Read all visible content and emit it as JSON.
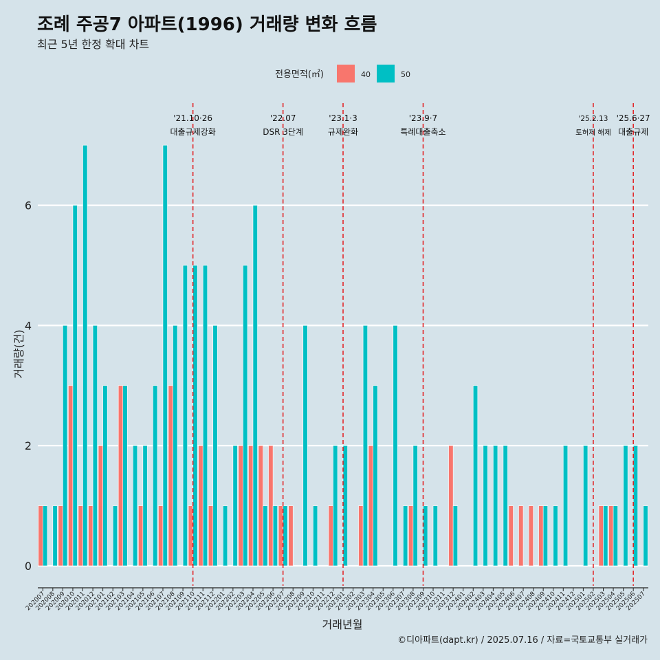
{
  "chart_data": {
    "type": "bar",
    "title": "조례 주공7 아파트(1996) 거래량 변화 흐름",
    "subtitle": "최근 5년 한정 확대 차트",
    "legend": {
      "title": "전용면적(㎡)",
      "entries": [
        {
          "label": "40",
          "color": "#f8766d"
        },
        {
          "label": "50",
          "color": "#00bfc4"
        }
      ]
    },
    "xlabel": "거래년월",
    "ylabel": "거래량(건)",
    "ylim": [
      -0.3,
      7.6
    ],
    "yticks": [
      0,
      2,
      4,
      6
    ],
    "categories": [
      "202007",
      "202008",
      "202009",
      "202010",
      "202011",
      "202012",
      "202101",
      "202102",
      "202103",
      "202104",
      "202105",
      "202106",
      "202107",
      "202108",
      "202109",
      "202110",
      "202111",
      "202112",
      "202201",
      "202202",
      "202203",
      "202204",
      "202205",
      "202206",
      "202207",
      "202208",
      "202209",
      "202210",
      "202211",
      "202212",
      "202301",
      "202302",
      "202303",
      "202304",
      "202305",
      "202306",
      "202307",
      "202308",
      "202309",
      "202310",
      "202311",
      "202312",
      "202401",
      "202402",
      "202403",
      "202404",
      "202405",
      "202406",
      "202407",
      "202408",
      "202409",
      "202410",
      "202411",
      "202412",
      "202501",
      "202502",
      "202503",
      "202504",
      "202505",
      "202506",
      "202507"
    ],
    "series": [
      {
        "name": "40",
        "color": "#f8766d",
        "values": [
          1,
          0,
          1,
          3,
          1,
          1,
          2,
          0,
          3,
          0,
          1,
          0,
          1,
          3,
          0,
          1,
          2,
          1,
          0,
          0,
          2,
          2,
          2,
          2,
          1,
          1,
          0,
          0,
          0,
          1,
          0,
          0,
          1,
          2,
          0,
          0,
          0,
          1,
          0,
          0,
          0,
          2,
          0,
          0,
          0,
          0,
          0,
          1,
          1,
          1,
          1,
          0,
          0,
          0,
          0,
          0,
          1,
          1,
          0,
          0,
          0
        ]
      },
      {
        "name": "50",
        "color": "#00bfc4",
        "values": [
          1,
          1,
          4,
          6,
          7,
          4,
          3,
          1,
          3,
          2,
          2,
          3,
          7,
          4,
          5,
          5,
          5,
          4,
          1,
          2,
          5,
          6,
          1,
          1,
          1,
          0,
          4,
          1,
          0,
          2,
          2,
          0,
          4,
          3,
          0,
          4,
          1,
          2,
          1,
          1,
          0,
          1,
          0,
          3,
          2,
          2,
          2,
          0,
          0,
          0,
          1,
          1,
          2,
          0,
          2,
          0,
          1,
          1,
          2,
          2,
          1
        ]
      }
    ],
    "annotations": [
      {
        "at": "202110",
        "date": "'21.10·26",
        "label": "대출규제강화",
        "size": "normal"
      },
      {
        "at": "202207",
        "date": "'22.07",
        "label": "DSR 3단계",
        "size": "normal"
      },
      {
        "at": "202301",
        "date": "'23.1·3",
        "label": "규제완화",
        "size": "normal"
      },
      {
        "at": "202309",
        "date": "'23.9·7",
        "label": "특례대출축소",
        "size": "normal"
      },
      {
        "at": "202502",
        "date": "'25.2.13",
        "label": "토허제 해제",
        "size": "small"
      },
      {
        "at": "202506",
        "date": "'25.6·27",
        "label": "대출규제",
        "size": "normal"
      }
    ],
    "caption": "©디아파트(dapt.kr) / 2025.07.16 / 자료=국토교통부 실거래가"
  }
}
